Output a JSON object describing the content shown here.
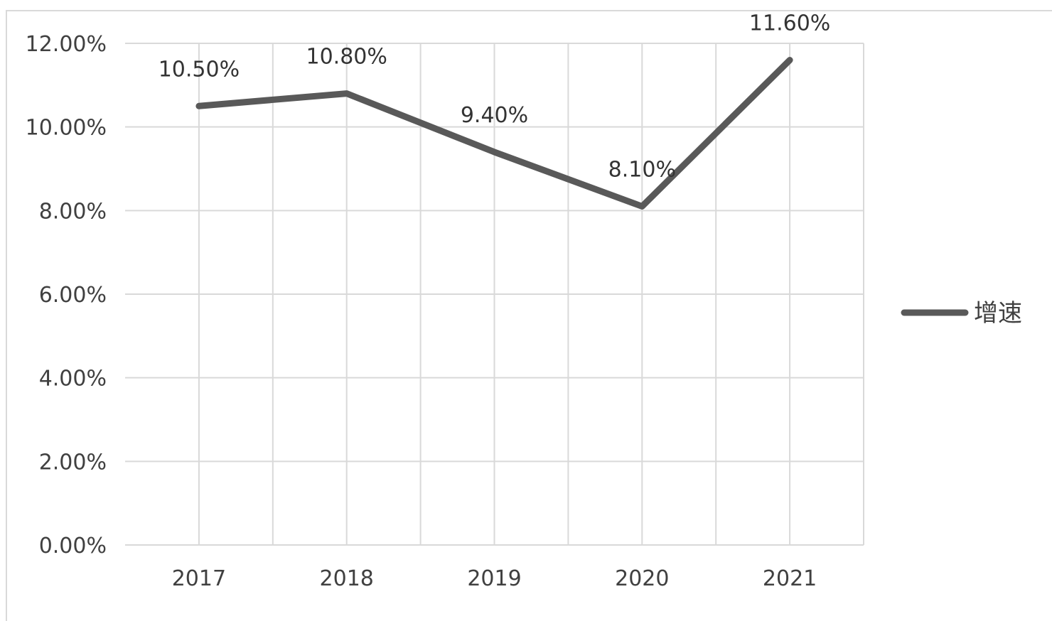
{
  "chart_data": {
    "type": "line",
    "title": "",
    "xlabel": "",
    "ylabel": "",
    "categories": [
      "2017",
      "2018",
      "2019",
      "2020",
      "2021"
    ],
    "series": [
      {
        "name": "增速",
        "values": [
          10.5,
          10.8,
          9.4,
          8.1,
          11.6
        ],
        "data_labels": [
          "10.50%",
          "10.80%",
          "9.40%",
          "8.10%",
          "11.60%"
        ],
        "color": "#595959"
      }
    ],
    "ylim": [
      0,
      12
    ],
    "y_ticks": [
      0,
      2,
      4,
      6,
      8,
      10,
      12
    ],
    "y_tick_labels": [
      "0.00%",
      "2.00%",
      "4.00%",
      "6.00%",
      "8.00%",
      "10.00%",
      "12.00%"
    ],
    "grid": true,
    "legend_position": "right",
    "gridline_color": "#d9d9d9",
    "axis_color": "#d9d9d9"
  }
}
